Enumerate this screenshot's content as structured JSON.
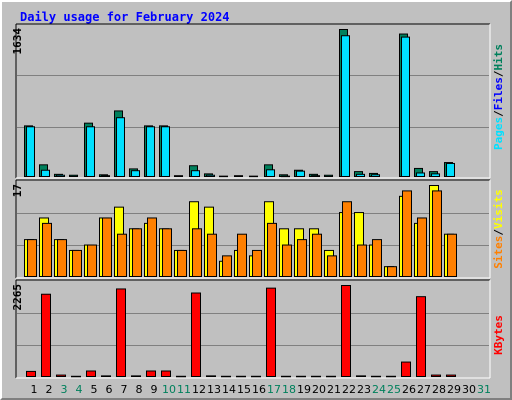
{
  "title": "Daily usage for February 2024",
  "colors": {
    "hits": "#00805C",
    "files": "#0000FF",
    "pages": "#00E0FF",
    "visits": "#FFFF00",
    "sites": "#FF8000",
    "kbytes": "#FF0000",
    "weekday_label": "#000000",
    "weekend_label": "#00805C",
    "grid": "#808080"
  },
  "chart_data": [
    {
      "type": "bar",
      "title": "Daily usage for February 2024",
      "categories": [
        "1",
        "2",
        "3",
        "4",
        "5",
        "6",
        "7",
        "8",
        "9",
        "10",
        "11",
        "12",
        "13",
        "14",
        "15",
        "16",
        "17",
        "18",
        "19",
        "20",
        "21",
        "22",
        "23",
        "24",
        "25",
        "26",
        "27",
        "28",
        "29",
        "30",
        "31"
      ],
      "weekend_days": [
        "3",
        "4",
        "10",
        "11",
        "17",
        "18",
        "24",
        "25",
        "31"
      ],
      "ylabel_parts": [
        "Pages",
        "Files",
        "Hits"
      ],
      "ymax_label": "1634",
      "ylim": [
        0,
        1634
      ],
      "series": [
        {
          "name": "Hits",
          "values": [
            570,
            140,
            35,
            25,
            600,
            30,
            735,
            95,
            570,
            570,
            20,
            130,
            40,
            15,
            20,
            15,
            140,
            30,
            80,
            35,
            25,
            1634,
            65,
            45,
            10,
            1584,
            100,
            65,
            165,
            0,
            0
          ]
        },
        {
          "name": "Files",
          "values": [
            565,
            85,
            30,
            15,
            570,
            25,
            670,
            80,
            565,
            565,
            15,
            80,
            30,
            10,
            15,
            10,
            95,
            20,
            75,
            25,
            15,
            1575,
            40,
            35,
            5,
            1560,
            55,
            45,
            160,
            0,
            0
          ]
        },
        {
          "name": "Pages",
          "values": [
            560,
            80,
            25,
            10,
            560,
            20,
            660,
            75,
            560,
            560,
            10,
            75,
            25,
            5,
            10,
            5,
            85,
            15,
            70,
            20,
            10,
            1565,
            35,
            30,
            0,
            1550,
            50,
            40,
            155,
            0,
            0
          ]
        }
      ]
    },
    {
      "type": "bar",
      "categories": [
        "1",
        "2",
        "3",
        "4",
        "5",
        "6",
        "7",
        "8",
        "9",
        "10",
        "11",
        "12",
        "13",
        "14",
        "15",
        "16",
        "17",
        "18",
        "19",
        "20",
        "21",
        "22",
        "23",
        "24",
        "25",
        "26",
        "27",
        "28",
        "29",
        "30",
        "31"
      ],
      "ylabel_parts": [
        "Sites",
        "Visits"
      ],
      "ymax_label": "17",
      "ylim": [
        0,
        17
      ],
      "series": [
        {
          "name": "Visits",
          "values": [
            7,
            11,
            7,
            5,
            6,
            11,
            13,
            9,
            10,
            9,
            5,
            14,
            13,
            3,
            5,
            4,
            14,
            9,
            9,
            9,
            5,
            12,
            12,
            6,
            2,
            15,
            10,
            17,
            8,
            0,
            0
          ]
        },
        {
          "name": "Sites",
          "values": [
            7,
            10,
            7,
            5,
            6,
            11,
            8,
            9,
            11,
            9,
            5,
            9,
            8,
            4,
            8,
            5,
            10,
            6,
            7,
            8,
            4,
            14,
            6,
            7,
            2,
            16,
            11,
            16,
            8,
            0,
            0
          ]
        }
      ]
    },
    {
      "type": "bar",
      "categories": [
        "1",
        "2",
        "3",
        "4",
        "5",
        "6",
        "7",
        "8",
        "9",
        "10",
        "11",
        "12",
        "13",
        "14",
        "15",
        "16",
        "17",
        "18",
        "19",
        "20",
        "21",
        "22",
        "23",
        "24",
        "25",
        "26",
        "27",
        "28",
        "29",
        "30",
        "31"
      ],
      "ylabel_parts": [
        "KBytes"
      ],
      "ymax_label": "2265",
      "ylim": [
        0,
        2265
      ],
      "series": [
        {
          "name": "KBytes",
          "values": [
            150,
            2050,
            60,
            30,
            160,
            40,
            2180,
            40,
            160,
            160,
            30,
            2080,
            40,
            30,
            30,
            30,
            2200,
            30,
            30,
            30,
            30,
            2265,
            40,
            30,
            30,
            380,
            1990,
            60,
            60,
            0,
            0
          ]
        }
      ]
    }
  ]
}
